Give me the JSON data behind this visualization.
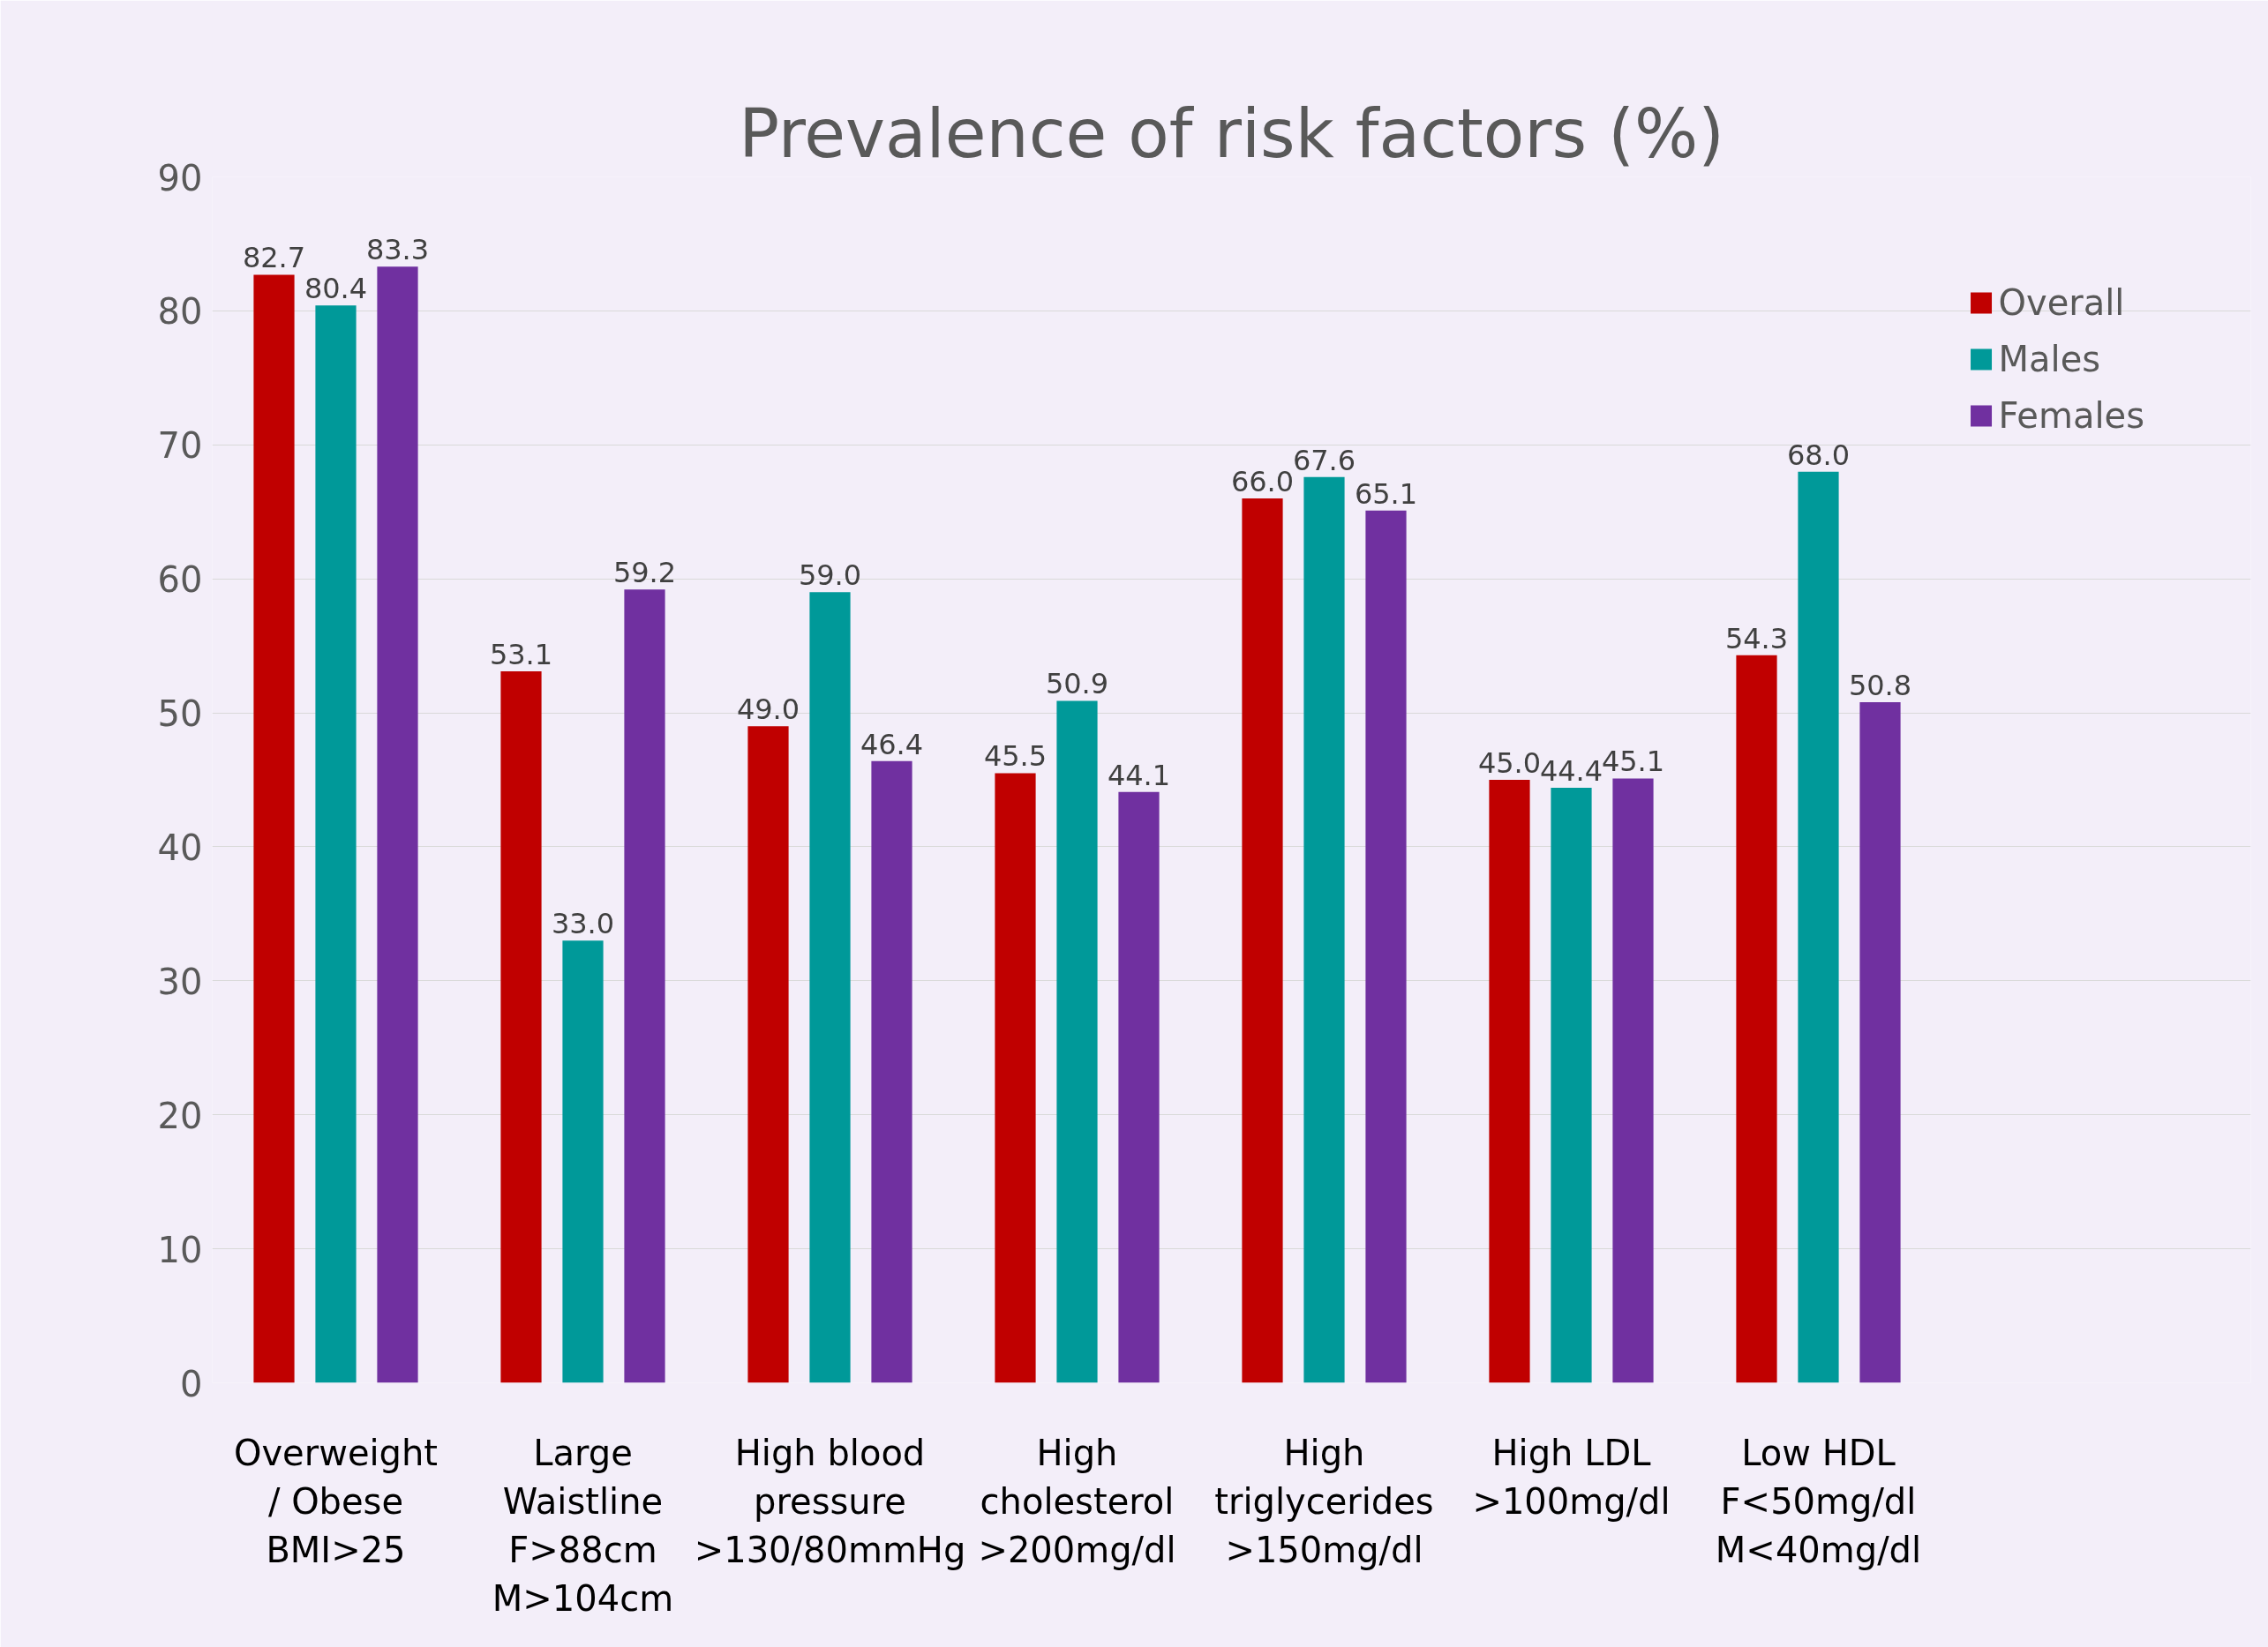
{
  "chart_data": {
    "type": "bar",
    "title": "Prevalence of risk factors (%)",
    "categories": [
      "Overweight\n/ Obese\nBMI>25",
      "Large\nWaistline\nF>88cm\nM>104cm",
      "High blood\npressure\n>130/80mmHg",
      "High\ncholesterol\n>200mg/dl",
      "High\ntriglycerides\n>150mg/dl",
      "High LDL\n>100mg/dl",
      "Low HDL\nF<50mg/dl\nM<40mg/dl"
    ],
    "series": [
      {
        "name": "Overall",
        "color": "#c00000",
        "values": [
          82.7,
          53.1,
          49.0,
          45.5,
          66.0,
          45.0,
          54.3
        ],
        "value_labels": [
          "82.7",
          "53.1",
          "49.0",
          "45.5",
          "66.0",
          "45.0",
          "54.3"
        ]
      },
      {
        "name": "Males",
        "color": "#009999",
        "values": [
          80.4,
          33.0,
          59.0,
          50.9,
          67.6,
          44.4,
          68.0
        ],
        "value_labels": [
          "80.4",
          "33.0",
          "59.0",
          "50.9",
          "67.6",
          "44.4",
          "68.0"
        ]
      },
      {
        "name": "Females",
        "color": "#7030a0",
        "values": [
          83.3,
          59.2,
          46.4,
          44.1,
          65.1,
          45.1,
          50.8
        ],
        "value_labels": [
          "83.3",
          "59.2",
          "46.4",
          "44.1",
          "65.1",
          "45.1",
          "50.8"
        ]
      }
    ],
    "ylim": [
      0,
      90
    ],
    "yticks": [
      0,
      10,
      20,
      30,
      40,
      50,
      60,
      70,
      80,
      90
    ],
    "grid": "y",
    "legend": "right"
  }
}
